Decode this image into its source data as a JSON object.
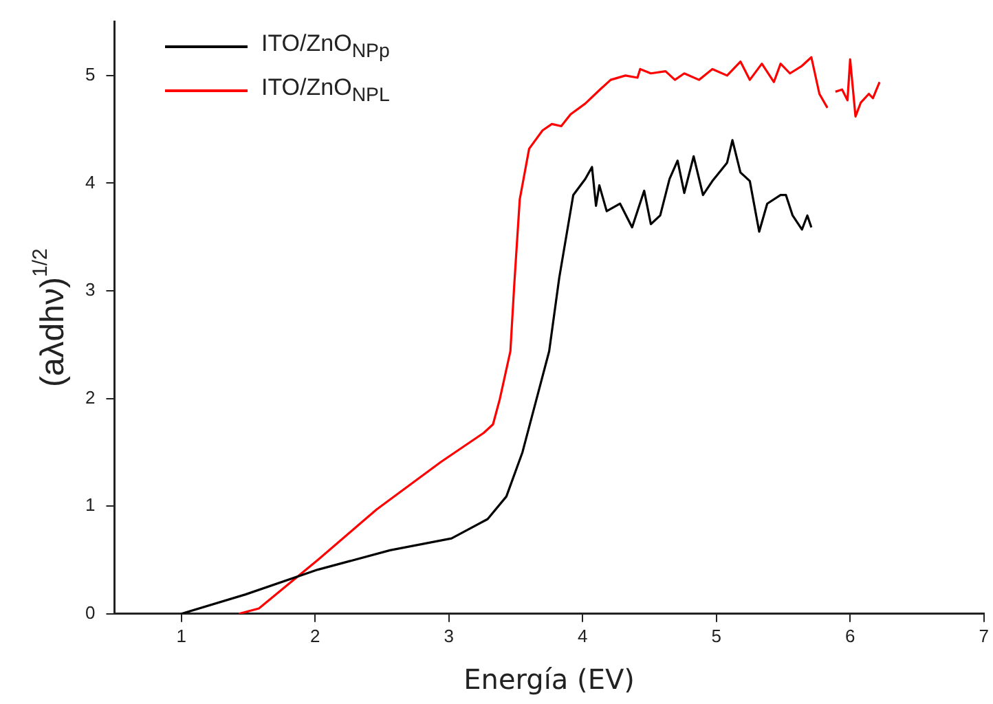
{
  "chart_data": {
    "type": "line",
    "xlabel": "Energía (EV)",
    "ylabel": "(aλdhν)$^{1/2}$",
    "xlim": [
      0.5,
      7
    ],
    "ylim": [
      0,
      5.5
    ],
    "xticks": [
      1,
      2,
      3,
      4,
      5,
      6,
      7
    ],
    "yticks": [
      0,
      1,
      2,
      3,
      4,
      5
    ],
    "grid": false,
    "legend": "top left",
    "marker": "none",
    "line_style": "solid",
    "series": [
      {
        "name": "ITO/ZnO$_{NPp}$",
        "color": "#000000",
        "x": [
          1.0,
          1.48,
          2.02,
          2.56,
          3.02,
          3.29,
          3.43,
          3.55,
          3.65,
          3.75,
          3.825,
          3.93,
          4.02,
          4.07,
          4.1,
          4.125,
          4.18,
          4.28,
          4.37,
          4.46,
          4.51,
          4.58,
          4.65,
          4.71,
          4.76,
          4.83,
          4.9,
          4.97,
          5.08,
          5.12,
          5.18,
          5.25,
          5.32,
          5.38,
          5.48,
          5.52,
          5.57,
          5.64,
          5.68,
          5.71
        ],
        "values": [
          0,
          0.18,
          0.41,
          0.59,
          0.7,
          0.88,
          1.09,
          1.5,
          1.97,
          2.44,
          3.12,
          3.89,
          4.04,
          4.15,
          3.79,
          3.98,
          3.74,
          3.81,
          3.59,
          3.93,
          3.62,
          3.7,
          4.04,
          4.21,
          3.91,
          4.25,
          3.89,
          4.02,
          4.19,
          4.4,
          4.1,
          4.02,
          3.55,
          3.81,
          3.89,
          3.89,
          3.7,
          3.57,
          3.7,
          3.59
        ]
      },
      {
        "name": "ITO/ZnO$_{NPL}$",
        "color": "#ff0000",
        "x": [
          1.43,
          1.58,
          2.02,
          2.46,
          2.94,
          3.26,
          3.33,
          3.38,
          3.46,
          3.49,
          3.53,
          3.6,
          3.7,
          3.77,
          3.84,
          3.91,
          4.02,
          4.13,
          4.21,
          4.32,
          4.41,
          4.43,
          4.51,
          4.62,
          4.69,
          4.76,
          4.87,
          4.97,
          5.08,
          5.18,
          5.25,
          5.34,
          5.43,
          5.48,
          5.55,
          5.64,
          5.71,
          5.77,
          5.83,
          5.86,
          5.89,
          5.94,
          5.98,
          6.0,
          6.04,
          6.08,
          6.14,
          6.17,
          6.22
        ],
        "values": [
          0,
          0.05,
          0.5,
          0.97,
          1.41,
          1.68,
          1.76,
          1.99,
          2.44,
          3.08,
          3.85,
          4.32,
          4.49,
          4.55,
          4.53,
          4.64,
          4.74,
          4.87,
          4.96,
          5.0,
          4.98,
          5.06,
          5.02,
          5.04,
          4.96,
          5.02,
          4.96,
          5.06,
          5.0,
          5.13,
          4.96,
          5.11,
          4.94,
          5.11,
          5.02,
          5.09,
          5.17,
          4.83,
          4.7,
          null,
          4.85,
          4.87,
          4.77,
          5.15,
          4.62,
          4.75,
          4.83,
          4.79,
          4.94
        ]
      }
    ]
  }
}
